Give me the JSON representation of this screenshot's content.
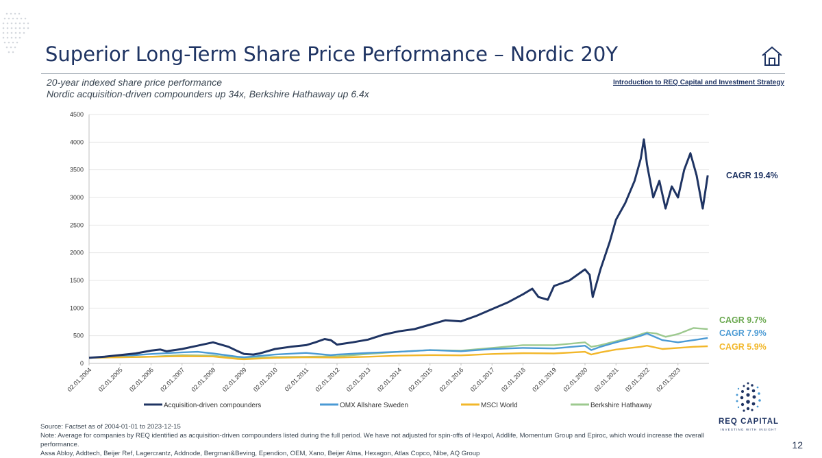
{
  "slide": {
    "title": "Superior Long-Term Share Price Performance – Nordic 20Y",
    "subtitle_line1": "20-year indexed share price performance",
    "subtitle_line2": "Nordic acquisition-driven compounders up 34x, Berkshire Hathaway up 6.4x",
    "intro_link": "Introduction to REQ Capital and Investment Strategy",
    "page_number": "12",
    "home_icon": "home-icon",
    "logo_name": "REQ CAPITAL",
    "logo_tagline": "INVESTING WITH INSIGHT",
    "source_text": "Source: Factset as of 2004-01-01 to 2023-12-15",
    "note_text": "Note: Average for companies by REQ identified as acquisition-driven compounders listed during the full period. We have not adjusted for spin-offs of Hexpol, Addlife, Momentum Group and Epiroc, which would increase the overall performance.",
    "companies_text": "Assa Abloy, Addtech, Beijer Ref, Lagercrantz, Addnode, Bergman&Beving, Ependion, OEM, Xano, Beijer Alma, Hexagon, Atlas Copco, Nibe, AQ Group"
  },
  "colors": {
    "navy": "#1f3463",
    "omx": "#4a9ad4",
    "msci": "#f2b72a",
    "berkshire": "#9dc98f",
    "cagr_green": "#6aa84f"
  },
  "chart_data": {
    "type": "line",
    "title": "20-year indexed share price performance",
    "ylim": [
      0,
      4500
    ],
    "y_ticks": [
      "0",
      "500",
      "1000",
      "1500",
      "2000",
      "2500",
      "3000",
      "3500",
      "4000",
      "4500"
    ],
    "x_range": [
      2004.0,
      2024.0
    ],
    "x_tick_labels": [
      "02.01.2004",
      "02.01.2005",
      "02.01.2006",
      "02.01.2007",
      "02.01.2008",
      "02.01.2009",
      "02.01.2010",
      "02.01.2011",
      "02.01.2012",
      "02.01.2013",
      "02.01.2014",
      "02.01.2015",
      "02.01.2016",
      "02.01.2017",
      "02.01.2018",
      "02.01.2019",
      "02.01.2020",
      "02.01.2021",
      "02.01.2022",
      "02.01.2023"
    ],
    "grid": true,
    "legend_position": "bottom",
    "series": [
      {
        "name": "Acquisition-driven compounders",
        "color": "#1f3463",
        "cagr_label": "CAGR 19.4%",
        "x": [
          2004.0,
          2004.5,
          2005.0,
          2005.5,
          2006.0,
          2006.3,
          2006.5,
          2007.0,
          2007.5,
          2008.0,
          2008.5,
          2008.8,
          2009.0,
          2009.3,
          2009.5,
          2010.0,
          2010.5,
          2011.0,
          2011.3,
          2011.6,
          2011.8,
          2012.0,
          2012.5,
          2013.0,
          2013.5,
          2014.0,
          2014.5,
          2015.0,
          2015.5,
          2016.0,
          2016.5,
          2017.0,
          2017.5,
          2018.0,
          2018.3,
          2018.5,
          2018.8,
          2019.0,
          2019.5,
          2020.0,
          2020.15,
          2020.25,
          2020.5,
          2020.8,
          2021.0,
          2021.3,
          2021.6,
          2021.8,
          2021.9,
          2022.0,
          2022.2,
          2022.4,
          2022.6,
          2022.8,
          2023.0,
          2023.2,
          2023.4,
          2023.6,
          2023.8,
          2023.96
        ],
        "values": [
          100,
          120,
          150,
          180,
          230,
          250,
          220,
          260,
          320,
          380,
          300,
          220,
          170,
          160,
          180,
          260,
          300,
          330,
          380,
          440,
          420,
          340,
          380,
          430,
          520,
          580,
          620,
          700,
          780,
          760,
          860,
          980,
          1100,
          1250,
          1350,
          1200,
          1150,
          1400,
          1500,
          1700,
          1600,
          1200,
          1700,
          2200,
          2600,
          2900,
          3300,
          3700,
          4050,
          3600,
          3000,
          3300,
          2800,
          3200,
          3000,
          3500,
          3800,
          3400,
          2800,
          3400
        ]
      },
      {
        "name": "OMX Allshare Sweden",
        "color": "#4a9ad4",
        "cagr_label": "CAGR 7.9%",
        "x": [
          2004.0,
          2005.0,
          2006.0,
          2007.0,
          2007.5,
          2008.0,
          2008.8,
          2009.0,
          2010.0,
          2011.0,
          2011.8,
          2012.0,
          2013.0,
          2014.0,
          2015.0,
          2015.5,
          2016.0,
          2017.0,
          2018.0,
          2019.0,
          2020.0,
          2020.2,
          2020.5,
          2021.0,
          2021.5,
          2021.8,
          2022.0,
          2022.5,
          2023.0,
          2023.5,
          2023.96
        ],
        "values": [
          100,
          130,
          170,
          200,
          210,
          180,
          120,
          110,
          160,
          190,
          150,
          160,
          190,
          210,
          240,
          230,
          220,
          260,
          280,
          270,
          320,
          240,
          300,
          380,
          450,
          500,
          540,
          420,
          380,
          420,
          460
        ]
      },
      {
        "name": "MSCI World",
        "color": "#f2b72a",
        "cagr_label": "CAGR 5.9%",
        "x": [
          2004.0,
          2005.0,
          2006.0,
          2007.0,
          2008.0,
          2008.8,
          2009.0,
          2010.0,
          2011.0,
          2012.0,
          2013.0,
          2014.0,
          2015.0,
          2016.0,
          2017.0,
          2018.0,
          2019.0,
          2020.0,
          2020.2,
          2020.5,
          2021.0,
          2021.8,
          2022.0,
          2022.5,
          2023.0,
          2023.5,
          2023.96
        ],
        "values": [
          100,
          110,
          120,
          130,
          125,
          80,
          75,
          100,
          110,
          105,
          120,
          140,
          150,
          145,
          170,
          185,
          180,
          210,
          160,
          200,
          250,
          300,
          320,
          260,
          280,
          300,
          310
        ]
      },
      {
        "name": "Berkshire Hathaway",
        "color": "#9dc98f",
        "cagr_label": "CAGR 9.7%",
        "x": [
          2004.0,
          2005.0,
          2006.0,
          2007.0,
          2008.0,
          2008.8,
          2009.0,
          2010.0,
          2011.0,
          2012.0,
          2013.0,
          2014.0,
          2015.0,
          2016.0,
          2017.0,
          2018.0,
          2019.0,
          2020.0,
          2020.2,
          2020.5,
          2021.0,
          2021.5,
          2022.0,
          2022.3,
          2022.6,
          2023.0,
          2023.5,
          2023.96
        ],
        "values": [
          100,
          110,
          120,
          150,
          140,
          100,
          95,
          115,
          120,
          130,
          170,
          210,
          240,
          230,
          280,
          330,
          330,
          380,
          300,
          330,
          400,
          470,
          560,
          540,
          480,
          530,
          640,
          620
        ]
      }
    ]
  }
}
